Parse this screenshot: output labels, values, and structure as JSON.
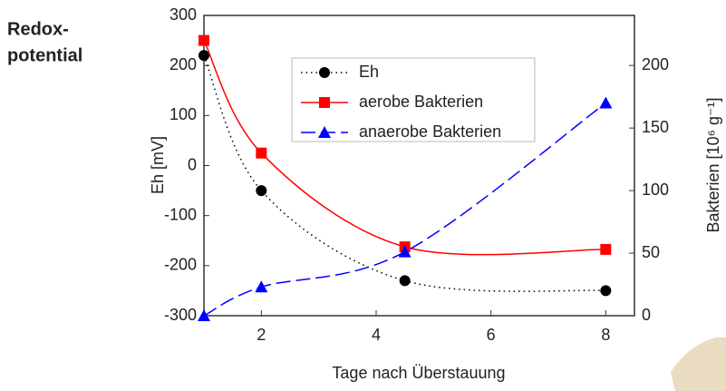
{
  "chart_data": {
    "type": "line",
    "annotation": [
      "Redox-",
      "potential"
    ],
    "xlabel": "Tage nach Überstauung",
    "ylabel": "Eh [mV]",
    "y2label": "Bakterien [10⁶ g⁻¹]",
    "xlim": [
      1,
      8.5
    ],
    "xticks": [
      2,
      4,
      6,
      8
    ],
    "ylim": [
      -300,
      300
    ],
    "yticks": [
      -300,
      -200,
      -100,
      0,
      100,
      200,
      300
    ],
    "y2lim": [
      0,
      240
    ],
    "y2ticks": [
      0,
      50,
      100,
      150,
      200
    ],
    "x": [
      1,
      2,
      4.5,
      8
    ],
    "series": [
      {
        "name": "Eh",
        "color": "#000000",
        "marker": "circle",
        "dash": "dotted",
        "values": [
          220,
          -50,
          -230,
          -250
        ]
      },
      {
        "name": "aerobe Bakterien",
        "color": "#ff0000",
        "marker": "square",
        "dash": "solid",
        "axis": "y2",
        "values": [
          220,
          130,
          55,
          53
        ]
      },
      {
        "name": "anaerobe Bakterien",
        "color": "#0000ff",
        "marker": "triangle",
        "dash": "dashed",
        "axis": "y2",
        "values": [
          0,
          23,
          51,
          170
        ]
      }
    ]
  }
}
